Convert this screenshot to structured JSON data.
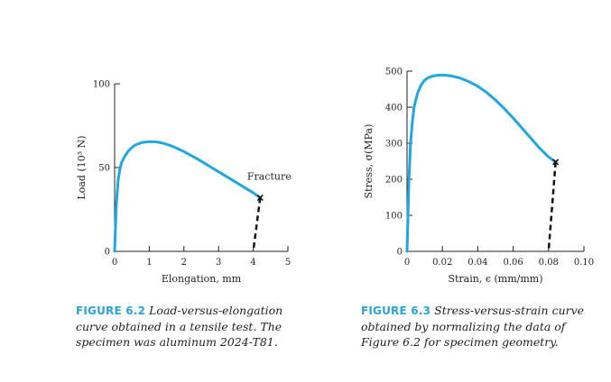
{
  "colors": {
    "curve": "#1ea7e1",
    "axis": "#222222",
    "caption_label": "#2aa3d8"
  },
  "chart_data": [
    {
      "type": "line",
      "title": "",
      "xlabel": "Elongation, mm",
      "ylabel": "Load (10³ N)",
      "xlim": [
        0,
        5
      ],
      "ylim": [
        0,
        100
      ],
      "x_ticks": [
        0,
        1,
        2,
        3,
        4,
        5
      ],
      "y_ticks": [
        0,
        50,
        100
      ],
      "x_tick_labels": [
        "0",
        "1",
        "2",
        "3",
        "4",
        "5"
      ],
      "y_tick_labels": [
        "0",
        "50",
        "100"
      ],
      "grid": false,
      "annotation": "Fracture",
      "series": [
        {
          "x": [
            0,
            0.05,
            0.1,
            0.15,
            0.2,
            0.3,
            0.4,
            0.5,
            0.6,
            0.8,
            1.0,
            1.2,
            1.4,
            1.6,
            1.8,
            2.0,
            2.2,
            2.4,
            2.6,
            2.8,
            3.0,
            3.2,
            3.4,
            3.6,
            3.8,
            4.0,
            4.1,
            4.2
          ],
          "y": [
            0,
            28,
            42,
            49,
            53,
            57,
            60,
            62,
            63.5,
            65,
            65.5,
            65.3,
            64.5,
            63.2,
            61.5,
            59.5,
            57.3,
            55,
            52.5,
            50,
            47.5,
            45,
            42.5,
            40,
            37.5,
            35,
            33.5,
            32
          ]
        }
      ],
      "fracture_line": {
        "x": [
          4.2,
          4.0
        ],
        "y": [
          32,
          0
        ]
      }
    },
    {
      "type": "line",
      "title": "",
      "xlabel": "Strain, ϵ (mm/mm)",
      "ylabel": "Stress, σ(MPa)",
      "xlim": [
        0,
        0.1
      ],
      "ylim": [
        0,
        500
      ],
      "x_ticks": [
        0,
        0.02,
        0.04,
        0.06,
        0.08,
        0.1
      ],
      "y_ticks": [
        0,
        100,
        200,
        300,
        400,
        500
      ],
      "x_tick_labels": [
        "0",
        "0.02",
        "0.04",
        "0.06",
        "0.08",
        "0.10"
      ],
      "y_tick_labels": [
        "0",
        "100",
        "200",
        "300",
        "400",
        "500"
      ],
      "grid": false,
      "series": [
        {
          "x": [
            0,
            0.001,
            0.002,
            0.003,
            0.004,
            0.006,
            0.008,
            0.01,
            0.012,
            0.015,
            0.018,
            0.021,
            0.025,
            0.03,
            0.035,
            0.04,
            0.045,
            0.05,
            0.055,
            0.06,
            0.065,
            0.07,
            0.075,
            0.08,
            0.084
          ],
          "y": [
            0,
            190,
            300,
            360,
            400,
            440,
            462,
            475,
            482,
            487,
            489,
            489,
            487,
            481,
            471,
            458,
            441,
            420,
            396,
            370,
            342,
            314,
            286,
            262,
            248
          ]
        }
      ],
      "fracture_line": {
        "x": [
          0.084,
          0.08
        ],
        "y": [
          248,
          0
        ]
      }
    }
  ],
  "captions": {
    "left": {
      "label": "FIGURE 6.2",
      "text": "Load-versus-elongation curve obtained in a tensile test. The specimen was aluminum 2024-T81."
    },
    "right": {
      "label": "FIGURE 6.3",
      "text": "Stress-versus-strain curve obtained by normalizing the data of Figure 6.2 for specimen geometry."
    }
  }
}
